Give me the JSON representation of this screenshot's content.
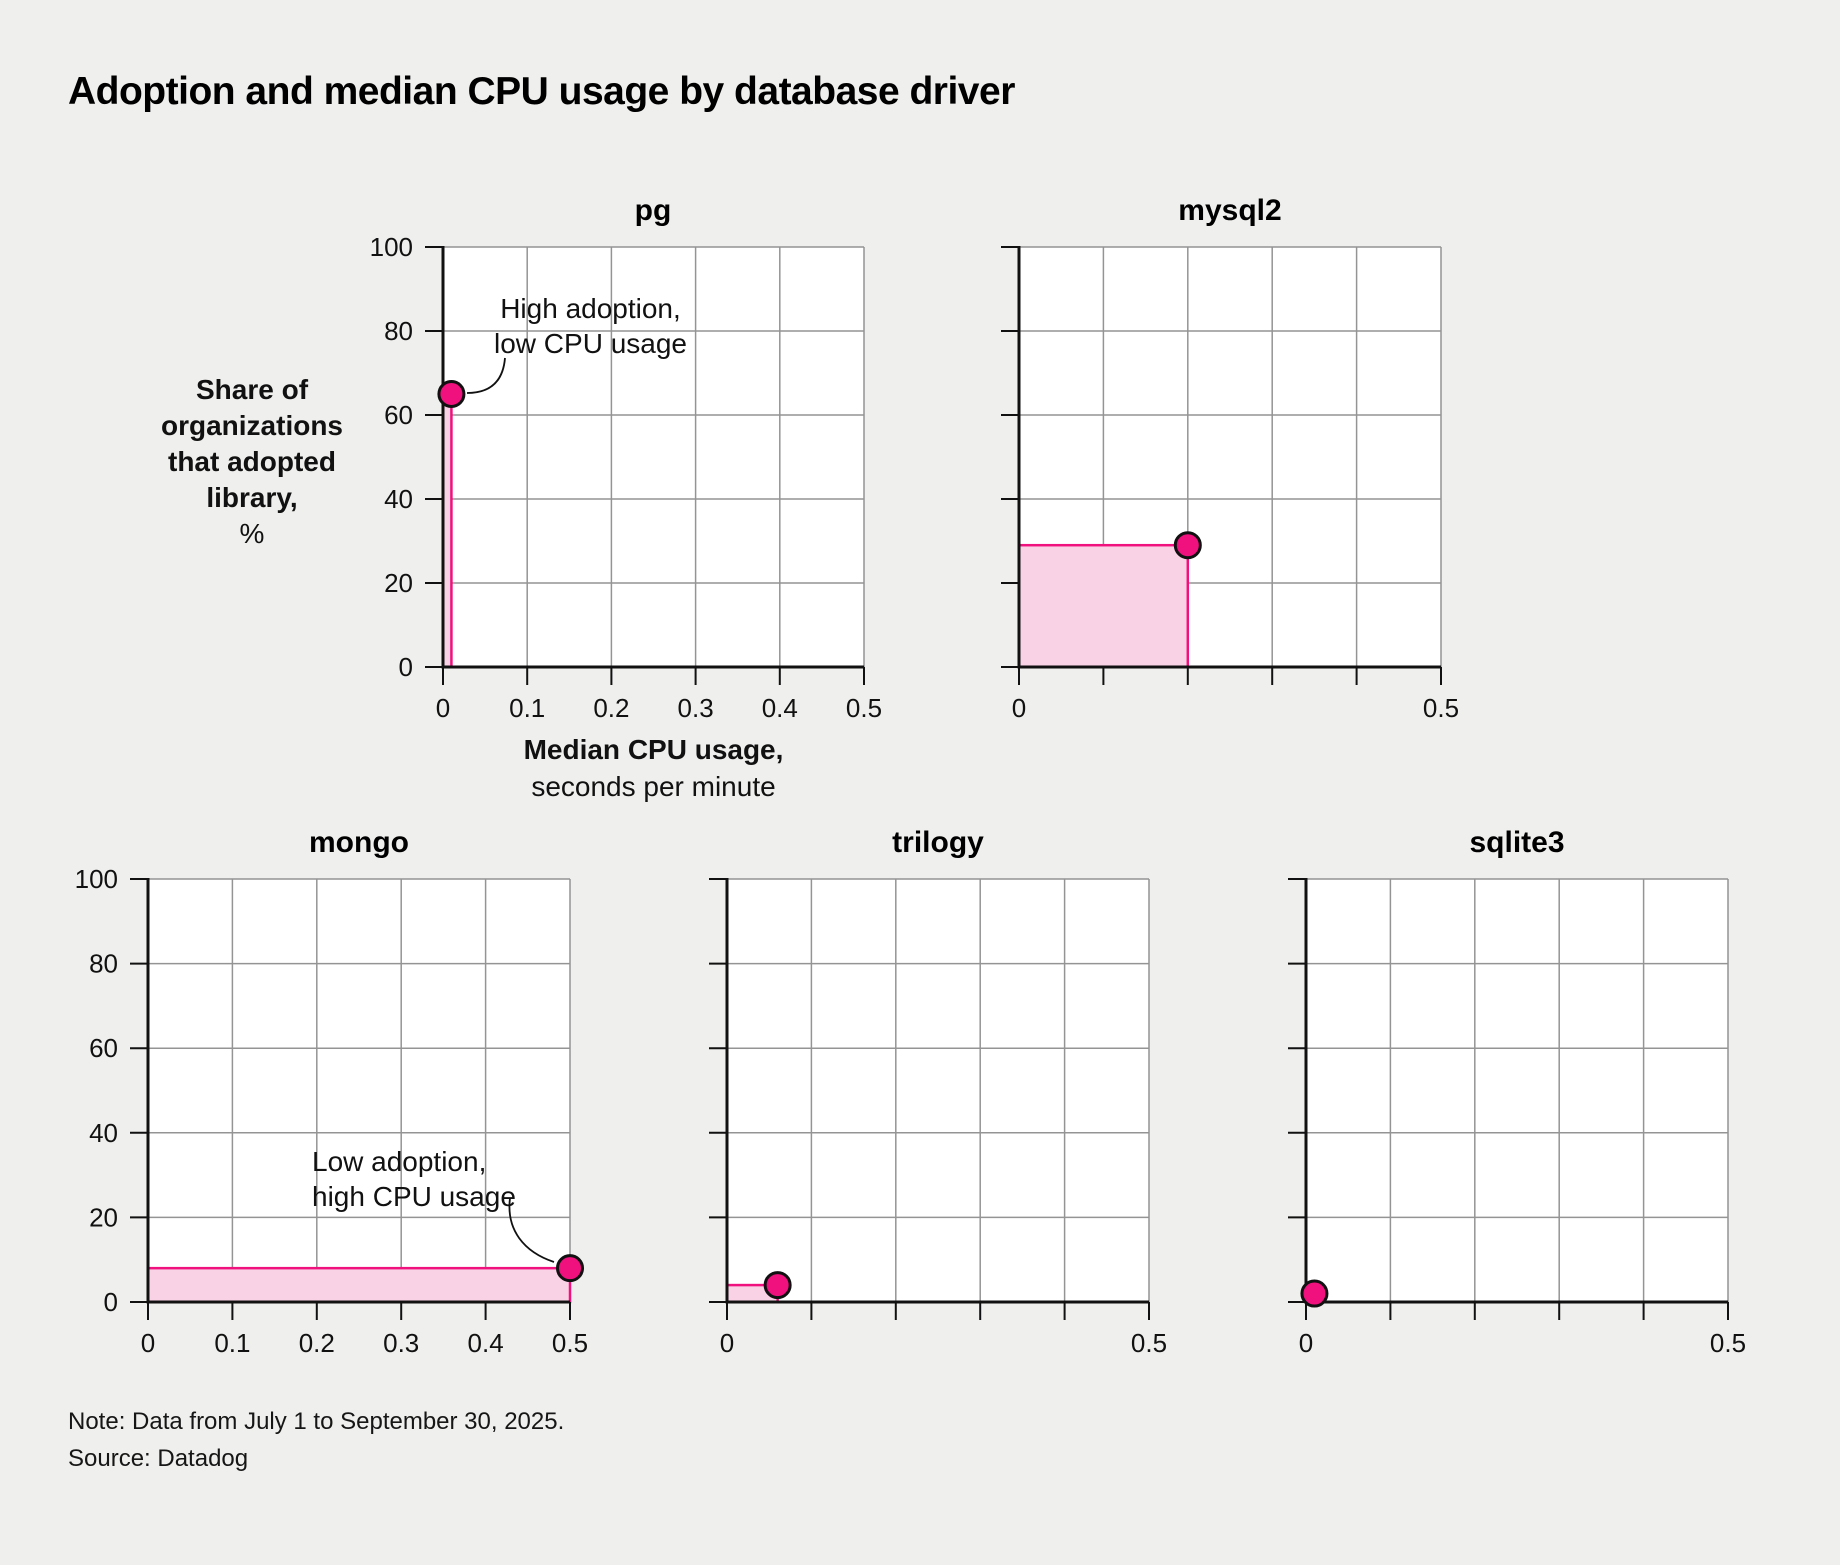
{
  "title": "Adoption and median CPU usage by database driver",
  "axis_labels": {
    "y_bold": "Share of organizations that adopted library,",
    "y_unit": "%",
    "x_bold": "Median CPU usage,",
    "x_unit": "seconds per minute"
  },
  "annotations": {
    "pg": {
      "line1": "High adoption,",
      "line2": "low CPU usage"
    },
    "mongo": {
      "line1": "Low adoption,",
      "line2": "high CPU usage"
    }
  },
  "footer": {
    "note": "Note: Data from July 1 to September 30, 2025.",
    "source": "Source: Datadog"
  },
  "colors": {
    "accent": "#f0117e",
    "area_fill": "#fad2e5",
    "grid": "#949494",
    "axis": "#111111",
    "background": "#efefed",
    "plot_background": "#ffffff"
  },
  "chart_data": [
    {
      "type": "scatter",
      "title": "pg",
      "x": 0.01,
      "y": 65,
      "xlim": [
        0,
        0.5
      ],
      "ylim": [
        0,
        100
      ],
      "x_ticks": [
        0,
        0.1,
        0.2,
        0.3,
        0.4,
        0.5
      ],
      "y_ticks": [
        0,
        20,
        40,
        60,
        80,
        100
      ],
      "x_tick_labels": "all",
      "y_tick_labels": true,
      "area_to_origin": true,
      "grid": true
    },
    {
      "type": "scatter",
      "title": "mysql2",
      "x": 0.2,
      "y": 29,
      "xlim": [
        0,
        0.5
      ],
      "ylim": [
        0,
        100
      ],
      "x_ticks": [
        0,
        0.1,
        0.2,
        0.3,
        0.4,
        0.5
      ],
      "y_ticks": [
        0,
        20,
        40,
        60,
        80,
        100
      ],
      "x_tick_labels": "ends",
      "y_tick_labels": false,
      "area_to_origin": true,
      "grid": true
    },
    {
      "type": "scatter",
      "title": "mongo",
      "x": 0.5,
      "y": 8,
      "xlim": [
        0,
        0.5
      ],
      "ylim": [
        0,
        100
      ],
      "x_ticks": [
        0,
        0.1,
        0.2,
        0.3,
        0.4,
        0.5
      ],
      "y_ticks": [
        0,
        20,
        40,
        60,
        80,
        100
      ],
      "x_tick_labels": "all",
      "y_tick_labels": true,
      "area_to_origin": true,
      "grid": true
    },
    {
      "type": "scatter",
      "title": "trilogy",
      "x": 0.06,
      "y": 4,
      "xlim": [
        0,
        0.5
      ],
      "ylim": [
        0,
        100
      ],
      "x_ticks": [
        0,
        0.1,
        0.2,
        0.3,
        0.4,
        0.5
      ],
      "y_ticks": [
        0,
        20,
        40,
        60,
        80,
        100
      ],
      "x_tick_labels": "ends",
      "y_tick_labels": false,
      "area_to_origin": true,
      "grid": true
    },
    {
      "type": "scatter",
      "title": "sqlite3",
      "x": 0.01,
      "y": 2,
      "xlim": [
        0,
        0.5
      ],
      "ylim": [
        0,
        100
      ],
      "x_ticks": [
        0,
        0.1,
        0.2,
        0.3,
        0.4,
        0.5
      ],
      "y_ticks": [
        0,
        20,
        40,
        60,
        80,
        100
      ],
      "x_tick_labels": "ends",
      "y_tick_labels": false,
      "area_to_origin": true,
      "grid": true
    }
  ]
}
